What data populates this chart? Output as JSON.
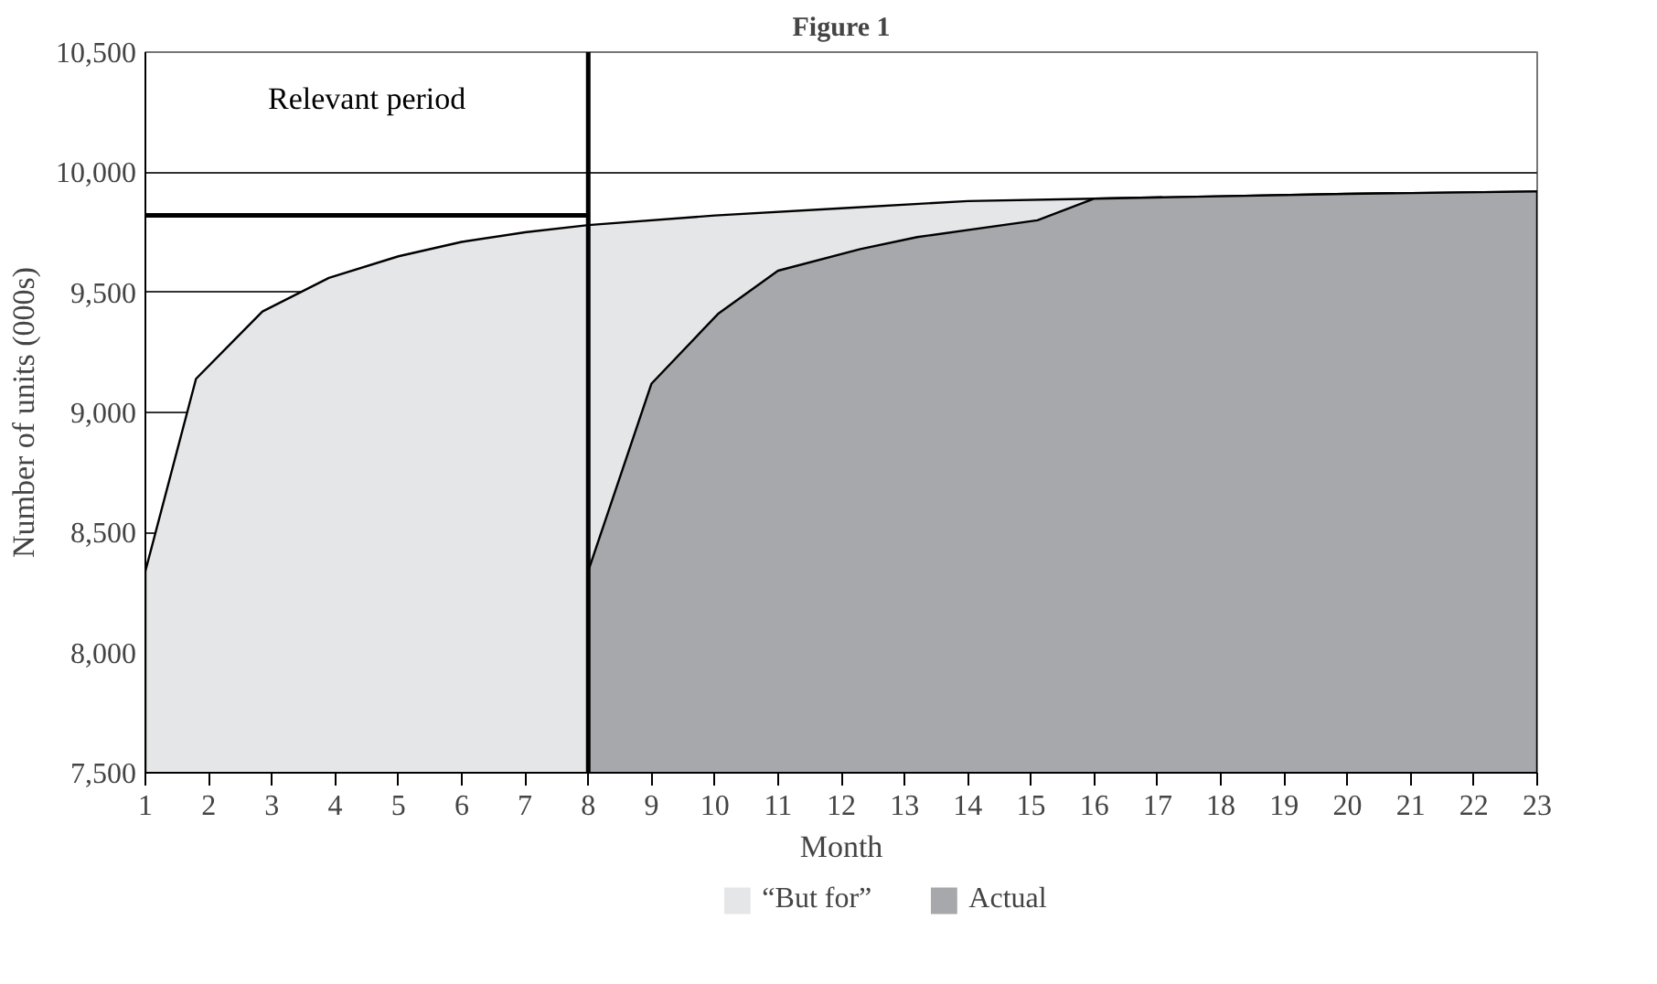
{
  "chart_data": {
    "type": "area",
    "title": "Figure 1",
    "xlabel": "Month",
    "ylabel": "Number of units (000s)",
    "series": [
      {
        "name": "“But for”",
        "color": "#e5e6e8",
        "x": [
          1,
          1.8,
          2.85,
          3.9,
          5,
          6,
          7,
          8,
          10,
          12,
          14,
          16,
          18,
          20,
          23
        ],
        "values": [
          8340,
          9140,
          9420,
          9560,
          9650,
          9710,
          9750,
          9780,
          9820,
          9850,
          9880,
          9890,
          9900,
          9910,
          9920
        ]
      },
      {
        "name": "Actual",
        "color": "#a7a8ab",
        "x": [
          8,
          9,
          10.05,
          11,
          12.3,
          13.2,
          15.1,
          16,
          18,
          20,
          23
        ],
        "values": [
          8340,
          9120,
          9410,
          9590,
          9680,
          9730,
          9800,
          9890,
          9900,
          9910,
          9920
        ]
      }
    ],
    "xlim": [
      1,
      23
    ],
    "xticks": [
      1,
      2,
      3,
      4,
      5,
      6,
      7,
      8,
      9,
      10,
      11,
      12,
      13,
      14,
      15,
      16,
      17,
      18,
      19,
      20,
      21,
      22,
      23
    ],
    "ylim": [
      7500,
      10500
    ],
    "yticks": [
      {
        "value": 7500,
        "label": "7,500"
      },
      {
        "value": 8000,
        "label": "8,000"
      },
      {
        "value": 8500,
        "label": "8,500"
      },
      {
        "value": 9000,
        "label": "9,000"
      },
      {
        "value": 9500,
        "label": "9,500"
      },
      {
        "value": 10000,
        "label": "10,000"
      },
      {
        "value": 10500,
        "label": "10,500"
      }
    ],
    "annotations": [
      "Relevant period"
    ],
    "ref_lines": [
      {
        "axis": "x",
        "value": 8,
        "color": "#000000"
      },
      {
        "axis": "y",
        "value": 9820,
        "color": "#000000"
      }
    ],
    "grid": "y",
    "legend": "bottom"
  }
}
